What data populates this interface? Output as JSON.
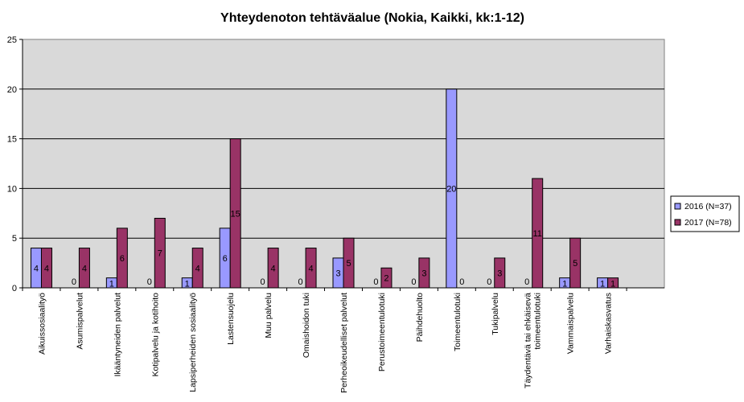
{
  "chart_data": {
    "type": "bar",
    "title": "Yhteydenoton tehtäväalue (Nokia, Kaikki, kk:1-12)",
    "xlabel": "",
    "ylabel": "",
    "ylim": [
      0,
      25
    ],
    "yticks": [
      "0",
      "5",
      "10",
      "15",
      "20",
      "25"
    ],
    "grid": true,
    "legend_position": "right",
    "categories": [
      [
        "Aikuissosiaalityö"
      ],
      [
        "Asumispalvelut"
      ],
      [
        "Ikääntyneiden palvelut"
      ],
      [
        "Kotipalvelu ja kotihoito"
      ],
      [
        "Lapsiperheiden sosiaalityö"
      ],
      [
        "Lastensuojelu"
      ],
      [
        "Muu palvelu"
      ],
      [
        "Omaishoidon tuki"
      ],
      [
        "Perheoikeudelliset palvelut"
      ],
      [
        "Perustoimeentulotuki"
      ],
      [
        "Päihdehuolto"
      ],
      [
        "Toimeentulotuki"
      ],
      [
        "Tukipalvelu"
      ],
      [
        "Täydentävä tai ehkäisevä",
        "toimeentulotuki"
      ],
      [
        "Vammaispalvelu"
      ],
      [
        "Varhaiskasvatus"
      ]
    ],
    "series": [
      {
        "name": "2016 (N=37)",
        "color": "#9999ff",
        "values": [
          4,
          0,
          1,
          0,
          1,
          6,
          0,
          0,
          3,
          0,
          0,
          20,
          0,
          0,
          1,
          1
        ]
      },
      {
        "name": "2017 (N=78)",
        "color": "#993366",
        "values": [
          4,
          4,
          6,
          7,
          4,
          15,
          4,
          4,
          5,
          2,
          3,
          0,
          3,
          11,
          5,
          1
        ]
      }
    ],
    "plot_background": "#d9d9d9"
  }
}
